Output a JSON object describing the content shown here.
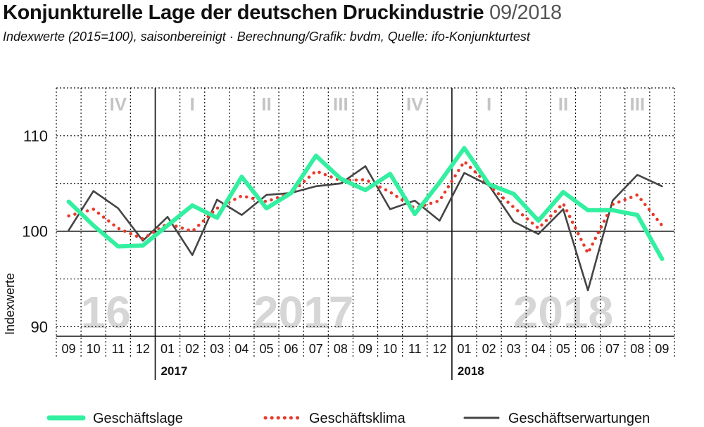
{
  "header": {
    "title": "Konjunkturelle Lage der deutschen Druckindustrie",
    "date": "09/2018",
    "subtitle": "Indexwerte (2015=100), saisonbereinigt · Berechnung/Grafik: bvdm, Quelle: ifo-Konjunkturtest"
  },
  "chart_data": {
    "type": "line",
    "ylabel": "Indexwerte",
    "ylim": [
      89,
      115
    ],
    "yticks": [
      "90",
      "100",
      "110"
    ],
    "x": [
      "09",
      "10",
      "11",
      "12",
      "01",
      "02",
      "03",
      "04",
      "05",
      "06",
      "07",
      "08",
      "09",
      "10",
      "11",
      "12",
      "01",
      "02",
      "03",
      "04",
      "05",
      "06",
      "07",
      "08",
      "09"
    ],
    "year_labels": [
      {
        "label": "2017",
        "start_index": 4
      },
      {
        "label": "2018",
        "start_index": 16
      }
    ],
    "background_years": [
      {
        "label": "16",
        "from": 0,
        "to": 3
      },
      {
        "label": "2017",
        "from": 4,
        "to": 15
      },
      {
        "label": "2018",
        "from": 16,
        "to": 24
      }
    ],
    "quarters": [
      {
        "label": "IV",
        "from": 1,
        "to": 3
      },
      {
        "label": "I",
        "from": 4,
        "to": 6
      },
      {
        "label": "II",
        "from": 7,
        "to": 9
      },
      {
        "label": "III",
        "from": 10,
        "to": 12
      },
      {
        "label": "IV",
        "from": 13,
        "to": 15
      },
      {
        "label": "I",
        "from": 16,
        "to": 18
      },
      {
        "label": "II",
        "from": 19,
        "to": 21
      },
      {
        "label": "III",
        "from": 22,
        "to": 24
      }
    ],
    "series": [
      {
        "name": "Geschäftslage",
        "color": "#33f0a0",
        "style": "solid",
        "values": [
          103.1,
          100.6,
          98.4,
          98.5,
          100.6,
          102.7,
          101.4,
          105.7,
          102.4,
          104.0,
          107.9,
          105.5,
          104.3,
          106.0,
          101.8,
          105.1,
          108.7,
          104.9,
          103.9,
          101.1,
          104.1,
          102.2,
          102.2,
          101.7,
          97.1
        ]
      },
      {
        "name": "Geschäftsklima",
        "color": "#e8392a",
        "style": "dotted",
        "values": [
          101.6,
          102.3,
          100.3,
          99.2,
          100.8,
          100.0,
          102.4,
          103.7,
          103.1,
          104.0,
          106.3,
          105.3,
          105.4,
          104.1,
          102.4,
          103.2,
          107.3,
          104.8,
          102.5,
          100.3,
          102.9,
          97.7,
          102.8,
          103.8,
          100.6
        ]
      },
      {
        "name": "Geschäftserwartungen",
        "color": "#444444",
        "style": "solid",
        "values": [
          100.1,
          104.2,
          102.4,
          99.0,
          101.5,
          97.5,
          103.3,
          101.7,
          103.8,
          104.0,
          104.7,
          105.0,
          106.8,
          102.3,
          103.2,
          101.1,
          106.1,
          104.8,
          101.0,
          99.7,
          102.3,
          93.8,
          103.2,
          105.9,
          104.7
        ]
      }
    ],
    "legend_position": "bottom",
    "grid": true
  }
}
